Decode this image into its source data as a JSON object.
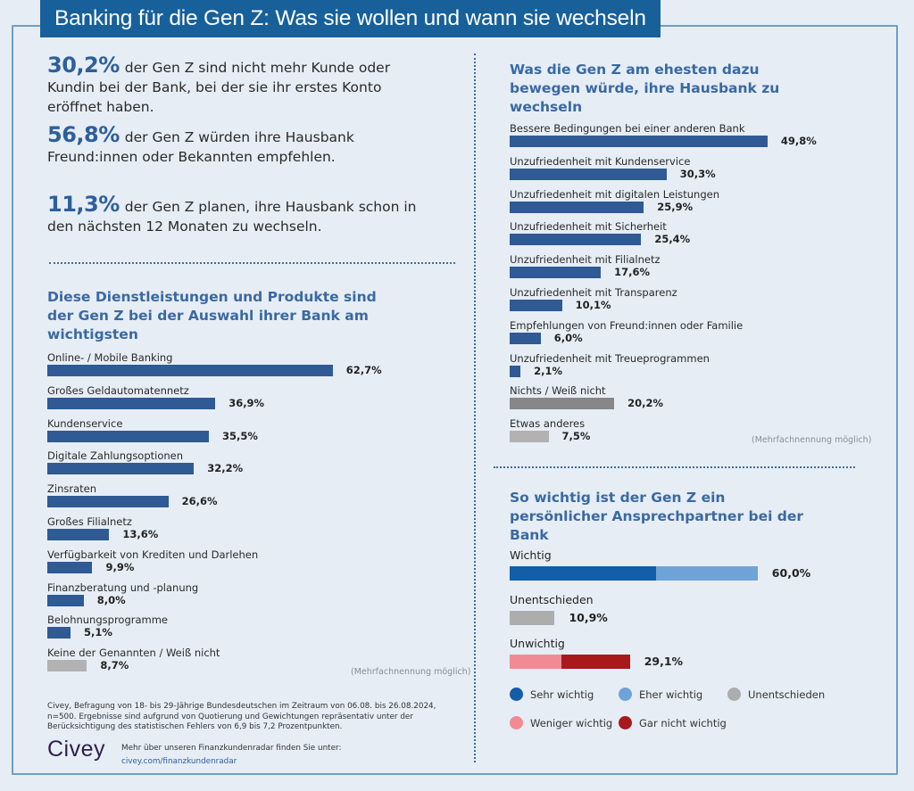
{
  "header": {
    "title": "Banking für die Gen Z: Was sie wollen und wann sie wechseln"
  },
  "stats": [
    {
      "value": "30,2%",
      "text": "der Gen Z sind nicht mehr Kunde oder Kundin bei der Bank, bei der sie ihr erstes Konto eröffnet haben."
    },
    {
      "value": "56,8%",
      "text": "der Gen Z würden ihre Hausbank Freund:innen oder Bekannten empfehlen."
    },
    {
      "value": "11,3%",
      "text": "der Gen Z planen, ihre Hausbank schon in den nächsten 12 Monaten zu wechseln."
    }
  ],
  "colors": {
    "primary_bar": "#2f5a93",
    "dark_gray_bar": "#878787",
    "light_gray_bar": "#b2b2b2",
    "sehr_wichtig": "#135ea8",
    "eher_wichtig": "#6fa3d8",
    "unentschieden": "#adadad",
    "weniger_wichtig": "#f08b93",
    "gar_nicht_wichtig": "#a8191b"
  },
  "chart_data": [
    {
      "type": "bar",
      "orientation": "horizontal",
      "title": "Diese Dienstleistungen und Produkte sind der Gen Z bei der Auswahl ihrer Bank am wichtigsten",
      "note": "(Mehrfachnennung möglich)",
      "unit": "%",
      "categories": [
        "Online- / Mobile Banking",
        "Großes Geldautomatennetz",
        "Kundenservice",
        "Digitale Zahlungsoptionen",
        "Zinsraten",
        "Großes Filialnetz",
        "Verfügbarkeit von Krediten und Darlehen",
        "Finanzberatung und -planung",
        "Belohnungsprogramme",
        "Keine der Genannten / Weiß nicht"
      ],
      "values": [
        62.7,
        36.9,
        35.5,
        32.2,
        26.6,
        13.6,
        9.9,
        8.0,
        5.1,
        8.7
      ],
      "value_labels": [
        "62,7%",
        "36,9%",
        "35,5%",
        "32,2%",
        "26,6%",
        "13,6%",
        "9,9%",
        "8,0%",
        "5,1%",
        "8,7%"
      ],
      "bar_colors": [
        "primary",
        "primary",
        "primary",
        "primary",
        "primary",
        "primary",
        "primary",
        "primary",
        "primary",
        "light_gray"
      ]
    },
    {
      "type": "bar",
      "orientation": "horizontal",
      "title": "Was die Gen Z am ehesten dazu bewegen würde, ihre Hausbank zu wechseln",
      "note": "(Mehrfachnennung möglich)",
      "unit": "%",
      "categories": [
        "Bessere Bedingungen bei einer anderen Bank",
        "Unzufriedenheit mit Kundenservice",
        "Unzufriedenheit mit digitalen Leistungen",
        "Unzufriedenheit mit Sicherheit",
        "Unzufriedenheit  mit Filialnetz",
        "Unzufriedenheit mit Transparenz",
        "Empfehlungen von Freund:innen oder Familie",
        "Unzufriedenheit mit Treueprogrammen",
        "Nichts / Weiß nicht",
        "Etwas anderes"
      ],
      "values": [
        49.8,
        30.3,
        25.9,
        25.4,
        17.6,
        10.1,
        6.0,
        2.1,
        20.2,
        7.5
      ],
      "value_labels": [
        "49,8%",
        "30,3%",
        "25,9%",
        "25,4%",
        "17,6%",
        "10,1%",
        "6,0%",
        "2,1%",
        "20,2%",
        "7,5%"
      ],
      "bar_colors": [
        "primary",
        "primary",
        "primary",
        "primary",
        "primary",
        "primary",
        "primary",
        "primary",
        "dark_gray",
        "light_gray"
      ]
    },
    {
      "type": "bar",
      "orientation": "horizontal",
      "stacked": true,
      "title": "So wichtig ist der Gen Z ein persönlicher Ansprechpartner bei der Bank",
      "unit": "%",
      "categories": [
        "Wichtig",
        "Unentschieden",
        "Unwichtig"
      ],
      "totals": [
        60.0,
        10.9,
        29.1
      ],
      "value_labels": [
        "60,0%",
        "10,9%",
        "29,1%"
      ],
      "series": [
        {
          "name": "Sehr wichtig",
          "color_key": "sehr_wichtig",
          "values": [
            35.5,
            0,
            0
          ]
        },
        {
          "name": "Eher wichtig",
          "color_key": "eher_wichtig",
          "values": [
            24.5,
            0,
            0
          ]
        },
        {
          "name": "Unentschieden",
          "color_key": "unentschieden",
          "values": [
            0,
            10.9,
            0
          ]
        },
        {
          "name": "Weniger wichtig",
          "color_key": "weniger_wichtig",
          "values": [
            0,
            0,
            12.6
          ]
        },
        {
          "name": "Gar nicht wichtig",
          "color_key": "gar_nicht_wichtig",
          "values": [
            0,
            0,
            16.5
          ]
        }
      ],
      "legend": [
        "Sehr wichtig",
        "Eher wichtig",
        "Unentschieden",
        "Weniger wichtig",
        "Gar nicht wichtig"
      ]
    }
  ],
  "footer": {
    "source": "Civey, Befragung von 18- bis 29-Jährige Bundesdeutschen im Zeitraum von 06.08. bis 26.08.2024, n=500. Ergebnisse sind aufgrund von Quotierung und Gewichtungen repräsentativ unter der Berücksichtigung des statistischen Fehlers von 6,9 bis 7,2 Prozentpunkten.",
    "logo": "Civey",
    "more_text": "Mehr über unseren Finanzkundenradar finden Sie unter:",
    "link": "civey.com/finanzkundenradar"
  }
}
